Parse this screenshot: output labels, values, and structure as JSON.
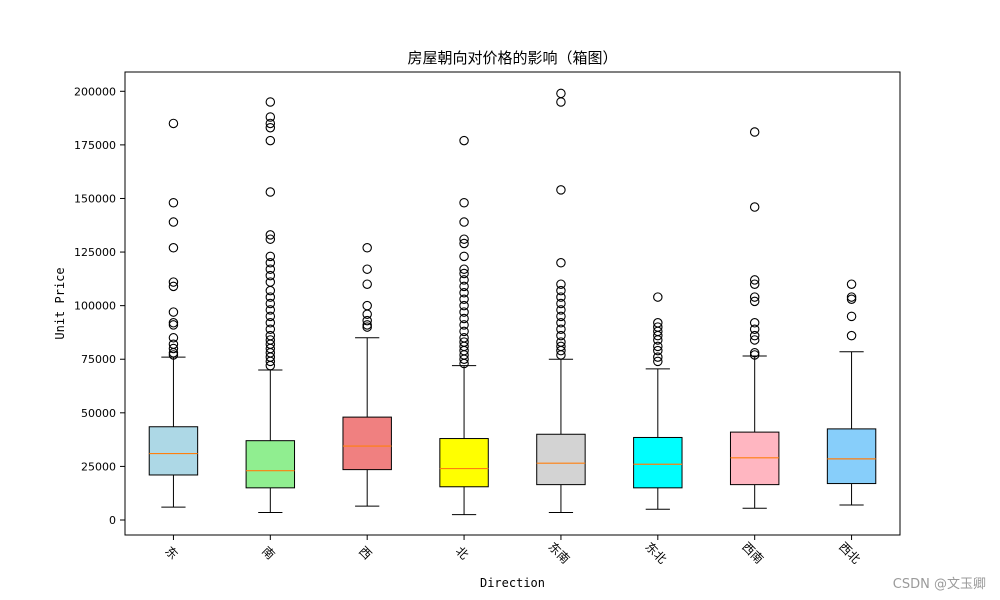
{
  "chart_data": {
    "type": "box",
    "title": "房屋朝向对价格的影响（箱图）",
    "xlabel": "Direction",
    "ylabel": "Unit Price",
    "ylim": [
      -7000,
      209000
    ],
    "yticks": [
      0,
      25000,
      50000,
      75000,
      100000,
      125000,
      150000,
      175000,
      200000
    ],
    "grid": false,
    "median_color": "#ff7f0e",
    "series": [
      {
        "category": "东",
        "color": "#add8e6",
        "whisker_low": 6000,
        "q1": 21000,
        "median": 31000,
        "q3": 43500,
        "whisker_high": 76000,
        "outliers": [
          185000,
          148000,
          139000,
          127000,
          111000,
          109000,
          97000,
          92000,
          91000,
          85000,
          82000,
          80000,
          78000,
          77000
        ]
      },
      {
        "category": "南",
        "color": "#90ee90",
        "whisker_low": 3500,
        "q1": 15000,
        "median": 23000,
        "q3": 37000,
        "whisker_high": 70000,
        "outliers": [
          195000,
          188000,
          185000,
          183000,
          177000,
          153000,
          133000,
          131000,
          123000,
          120000,
          117000,
          114000,
          111000,
          107000,
          104000,
          101000,
          98000,
          95000,
          92000,
          89000,
          86000,
          84000,
          82000,
          80000,
          78000,
          76000,
          74000,
          72000
        ]
      },
      {
        "category": "西",
        "color": "#f08080",
        "whisker_low": 6500,
        "q1": 23500,
        "median": 34500,
        "q3": 48000,
        "whisker_high": 85000,
        "outliers": [
          127000,
          117000,
          110000,
          100000,
          96000,
          93000,
          91000,
          90000
        ]
      },
      {
        "category": "北",
        "color": "#ffff00",
        "whisker_low": 2500,
        "q1": 15500,
        "median": 24000,
        "q3": 38000,
        "whisker_high": 72000,
        "outliers": [
          177000,
          148000,
          139000,
          131000,
          129000,
          123000,
          117000,
          115000,
          112000,
          109000,
          106000,
          103000,
          100000,
          97000,
          94000,
          91000,
          88000,
          85000,
          83000,
          81000,
          79000,
          77000,
          75000,
          73000
        ]
      },
      {
        "category": "东南",
        "color": "#d3d3d3",
        "whisker_low": 3500,
        "q1": 16500,
        "median": 26500,
        "q3": 40000,
        "whisker_high": 75000,
        "outliers": [
          199000,
          195000,
          154000,
          120000,
          110000,
          107000,
          104000,
          101000,
          98000,
          95000,
          92000,
          89000,
          86000,
          83000,
          81000,
          79000,
          77000
        ]
      },
      {
        "category": "东北",
        "color": "#00ffff",
        "whisker_low": 5000,
        "q1": 15000,
        "median": 26000,
        "q3": 38500,
        "whisker_high": 70500,
        "outliers": [
          104000,
          92000,
          90000,
          88000,
          86000,
          84000,
          81000,
          79000,
          76000,
          74000
        ]
      },
      {
        "category": "西南",
        "color": "#ffb6c1",
        "whisker_low": 5500,
        "q1": 16500,
        "median": 29000,
        "q3": 41000,
        "whisker_high": 76500,
        "outliers": [
          181000,
          146000,
          112000,
          110000,
          104000,
          102000,
          92000,
          89000,
          86000,
          84000,
          78000,
          77000
        ]
      },
      {
        "category": "西北",
        "color": "#87cefa",
        "whisker_low": 7000,
        "q1": 17000,
        "median": 28500,
        "q3": 42500,
        "whisker_high": 78500,
        "outliers": [
          110000,
          104000,
          103000,
          95000,
          86000
        ]
      }
    ]
  },
  "watermark": "CSDN @文玉卿"
}
